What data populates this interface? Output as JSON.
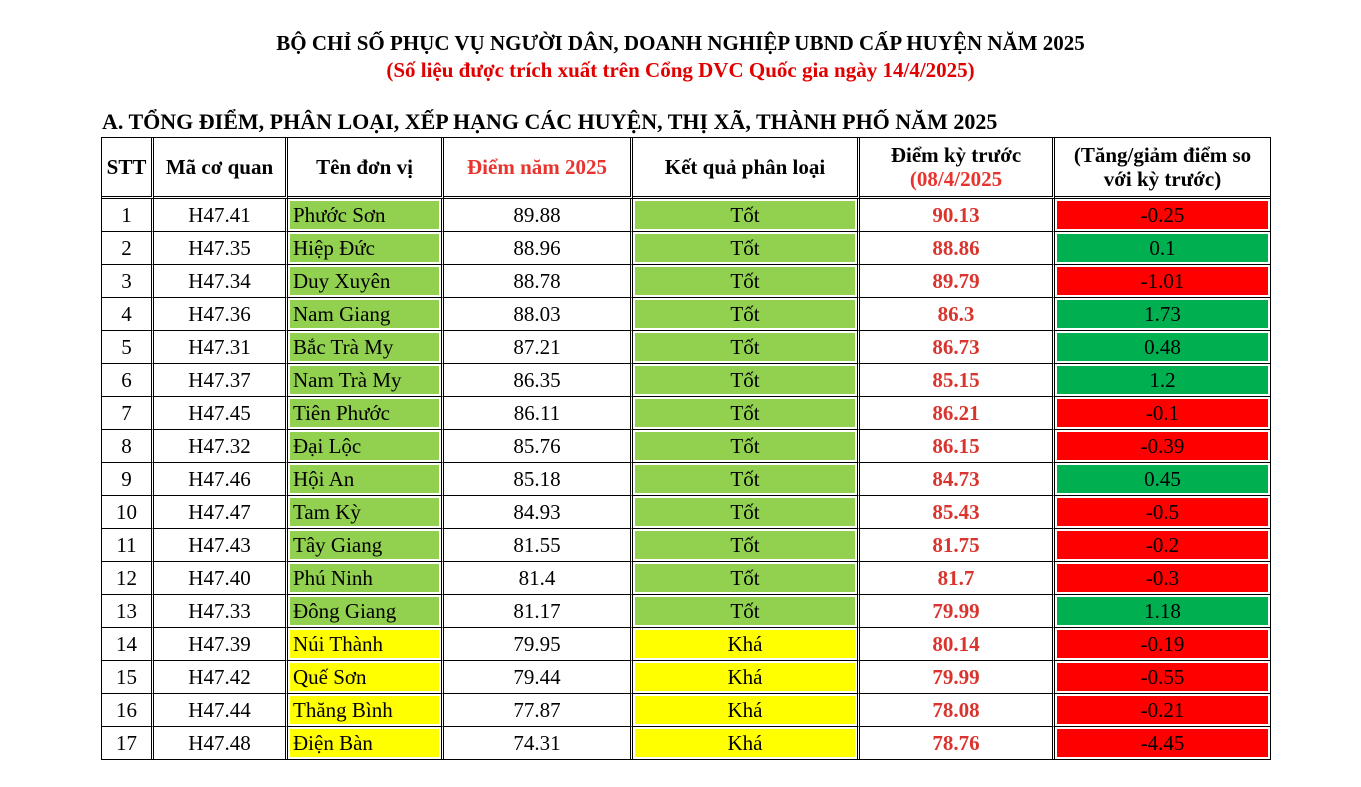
{
  "header": {
    "title": "BỘ CHỈ SỐ PHỤC VỤ NGƯỜI DÂN, DOANH NGHIỆP UBND CẤP HUYỆN NĂM 2025",
    "subtitle": "(Số liệu được trích xuất trên Cổng DVC Quốc gia ngày 14/4/2025)"
  },
  "section_title": "A. TỔNG ĐIỂM, PHÂN LOẠI, XẾP HẠNG CÁC HUYỆN, THỊ XÃ, THÀNH PHỐ NĂM 2025",
  "table": {
    "columns": {
      "stt": "STT",
      "code": "Mã cơ quan",
      "name": "Tên đơn vị",
      "score": "Điểm năm 2025",
      "result": "Kết quả phân loại",
      "prev_line1": "Điểm kỳ trước",
      "prev_line2": "(08/4/2025",
      "change_line1": "(Tăng/giảm điểm so",
      "change_line2": "với kỳ trước)"
    },
    "colors": {
      "good": "#92d050",
      "fair": "#ffff00",
      "increase": "#00b050",
      "decrease": "#ff0000",
      "prev_score_text": "#d9342e"
    },
    "rows": [
      {
        "stt": "1",
        "code": "H47.41",
        "name": "Phước Sơn",
        "score": "89.88",
        "result": "Tốt",
        "prev": "90.13",
        "change": "-0.25"
      },
      {
        "stt": "2",
        "code": "H47.35",
        "name": "Hiệp Đức",
        "score": "88.96",
        "result": "Tốt",
        "prev": "88.86",
        "change": "0.1"
      },
      {
        "stt": "3",
        "code": "H47.34",
        "name": "Duy Xuyên",
        "score": "88.78",
        "result": "Tốt",
        "prev": "89.79",
        "change": "-1.01"
      },
      {
        "stt": "4",
        "code": "H47.36",
        "name": "Nam Giang",
        "score": "88.03",
        "result": "Tốt",
        "prev": "86.3",
        "change": "1.73"
      },
      {
        "stt": "5",
        "code": "H47.31",
        "name": "Bắc Trà My",
        "score": "87.21",
        "result": "Tốt",
        "prev": "86.73",
        "change": "0.48"
      },
      {
        "stt": "6",
        "code": "H47.37",
        "name": "Nam Trà My",
        "score": "86.35",
        "result": "Tốt",
        "prev": "85.15",
        "change": "1.2"
      },
      {
        "stt": "7",
        "code": "H47.45",
        "name": "Tiên Phước",
        "score": "86.11",
        "result": "Tốt",
        "prev": "86.21",
        "change": "-0.1"
      },
      {
        "stt": "8",
        "code": "H47.32",
        "name": "Đại Lộc",
        "score": "85.76",
        "result": "Tốt",
        "prev": "86.15",
        "change": "-0.39"
      },
      {
        "stt": "9",
        "code": "H47.46",
        "name": "Hội An",
        "score": "85.18",
        "result": "Tốt",
        "prev": "84.73",
        "change": "0.45"
      },
      {
        "stt": "10",
        "code": "H47.47",
        "name": "Tam Kỳ",
        "score": "84.93",
        "result": "Tốt",
        "prev": "85.43",
        "change": "-0.5"
      },
      {
        "stt": "11",
        "code": "H47.43",
        "name": "Tây Giang",
        "score": "81.55",
        "result": "Tốt",
        "prev": "81.75",
        "change": "-0.2"
      },
      {
        "stt": "12",
        "code": "H47.40",
        "name": "Phú Ninh",
        "score": "81.4",
        "result": "Tốt",
        "prev": "81.7",
        "change": "-0.3"
      },
      {
        "stt": "13",
        "code": "H47.33",
        "name": "Đông Giang",
        "score": "81.17",
        "result": "Tốt",
        "prev": "79.99",
        "change": "1.18"
      },
      {
        "stt": "14",
        "code": "H47.39",
        "name": "Núi Thành",
        "score": "79.95",
        "result": "Khá",
        "prev": "80.14",
        "change": "-0.19"
      },
      {
        "stt": "15",
        "code": "H47.42",
        "name": "Quế Sơn",
        "score": "79.44",
        "result": "Khá",
        "prev": "79.99",
        "change": "-0.55"
      },
      {
        "stt": "16",
        "code": "H47.44",
        "name": "Thăng Bình",
        "score": "77.87",
        "result": "Khá",
        "prev": "78.08",
        "change": "-0.21"
      },
      {
        "stt": "17",
        "code": "H47.48",
        "name": "Điện Bàn",
        "score": "74.31",
        "result": "Khá",
        "prev": "78.76",
        "change": "-4.45"
      }
    ]
  }
}
